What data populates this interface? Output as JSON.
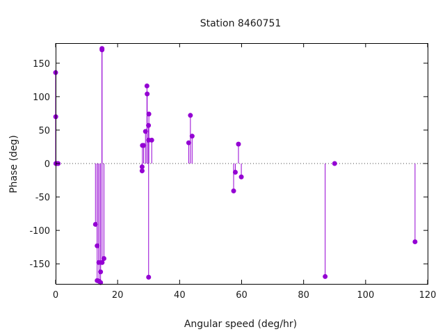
{
  "chart_data": {
    "type": "scatter",
    "style": "impulses-with-points",
    "title": "Station 8460751",
    "xlabel": "Angular speed (deg/hr)",
    "ylabel": "Phase (deg)",
    "xlim": [
      0,
      120
    ],
    "ylim": [
      -180,
      180
    ],
    "xticks": [
      0,
      20,
      40,
      60,
      80,
      100,
      120
    ],
    "yticks": [
      -150,
      -100,
      -50,
      0,
      50,
      100,
      150
    ],
    "zero_line": "dotted",
    "grid": false,
    "legend": "none",
    "color": "#9400d3",
    "series": [
      {
        "points": [
          [
            0.0,
            136
          ],
          [
            0.04,
            70
          ],
          [
            0.08,
            0
          ],
          [
            0.54,
            0
          ],
          [
            0.82,
            0
          ],
          [
            12.85,
            -91
          ],
          [
            13.4,
            -175
          ],
          [
            13.4,
            -123
          ],
          [
            13.94,
            -148
          ],
          [
            14.0,
            -176
          ],
          [
            14.5,
            -178
          ],
          [
            14.5,
            -162
          ],
          [
            14.96,
            170
          ],
          [
            14.96,
            172
          ],
          [
            15.0,
            -148
          ],
          [
            15.59,
            -142
          ],
          [
            27.9,
            -5
          ],
          [
            27.9,
            -11
          ],
          [
            28.0,
            27
          ],
          [
            28.4,
            27
          ],
          [
            28.99,
            48
          ],
          [
            29.46,
            116
          ],
          [
            29.53,
            104
          ],
          [
            29.96,
            57
          ],
          [
            30.0,
            35
          ],
          [
            30.0,
            -170
          ],
          [
            30.08,
            74
          ],
          [
            31.0,
            35
          ],
          [
            42.93,
            31
          ],
          [
            43.48,
            72
          ],
          [
            44.03,
            41
          ],
          [
            57.42,
            -41
          ],
          [
            57.97,
            -13
          ],
          [
            58.98,
            29
          ],
          [
            59.9,
            -20
          ],
          [
            86.95,
            -169
          ],
          [
            90.0,
            0
          ],
          [
            115.94,
            -117
          ]
        ]
      }
    ]
  }
}
